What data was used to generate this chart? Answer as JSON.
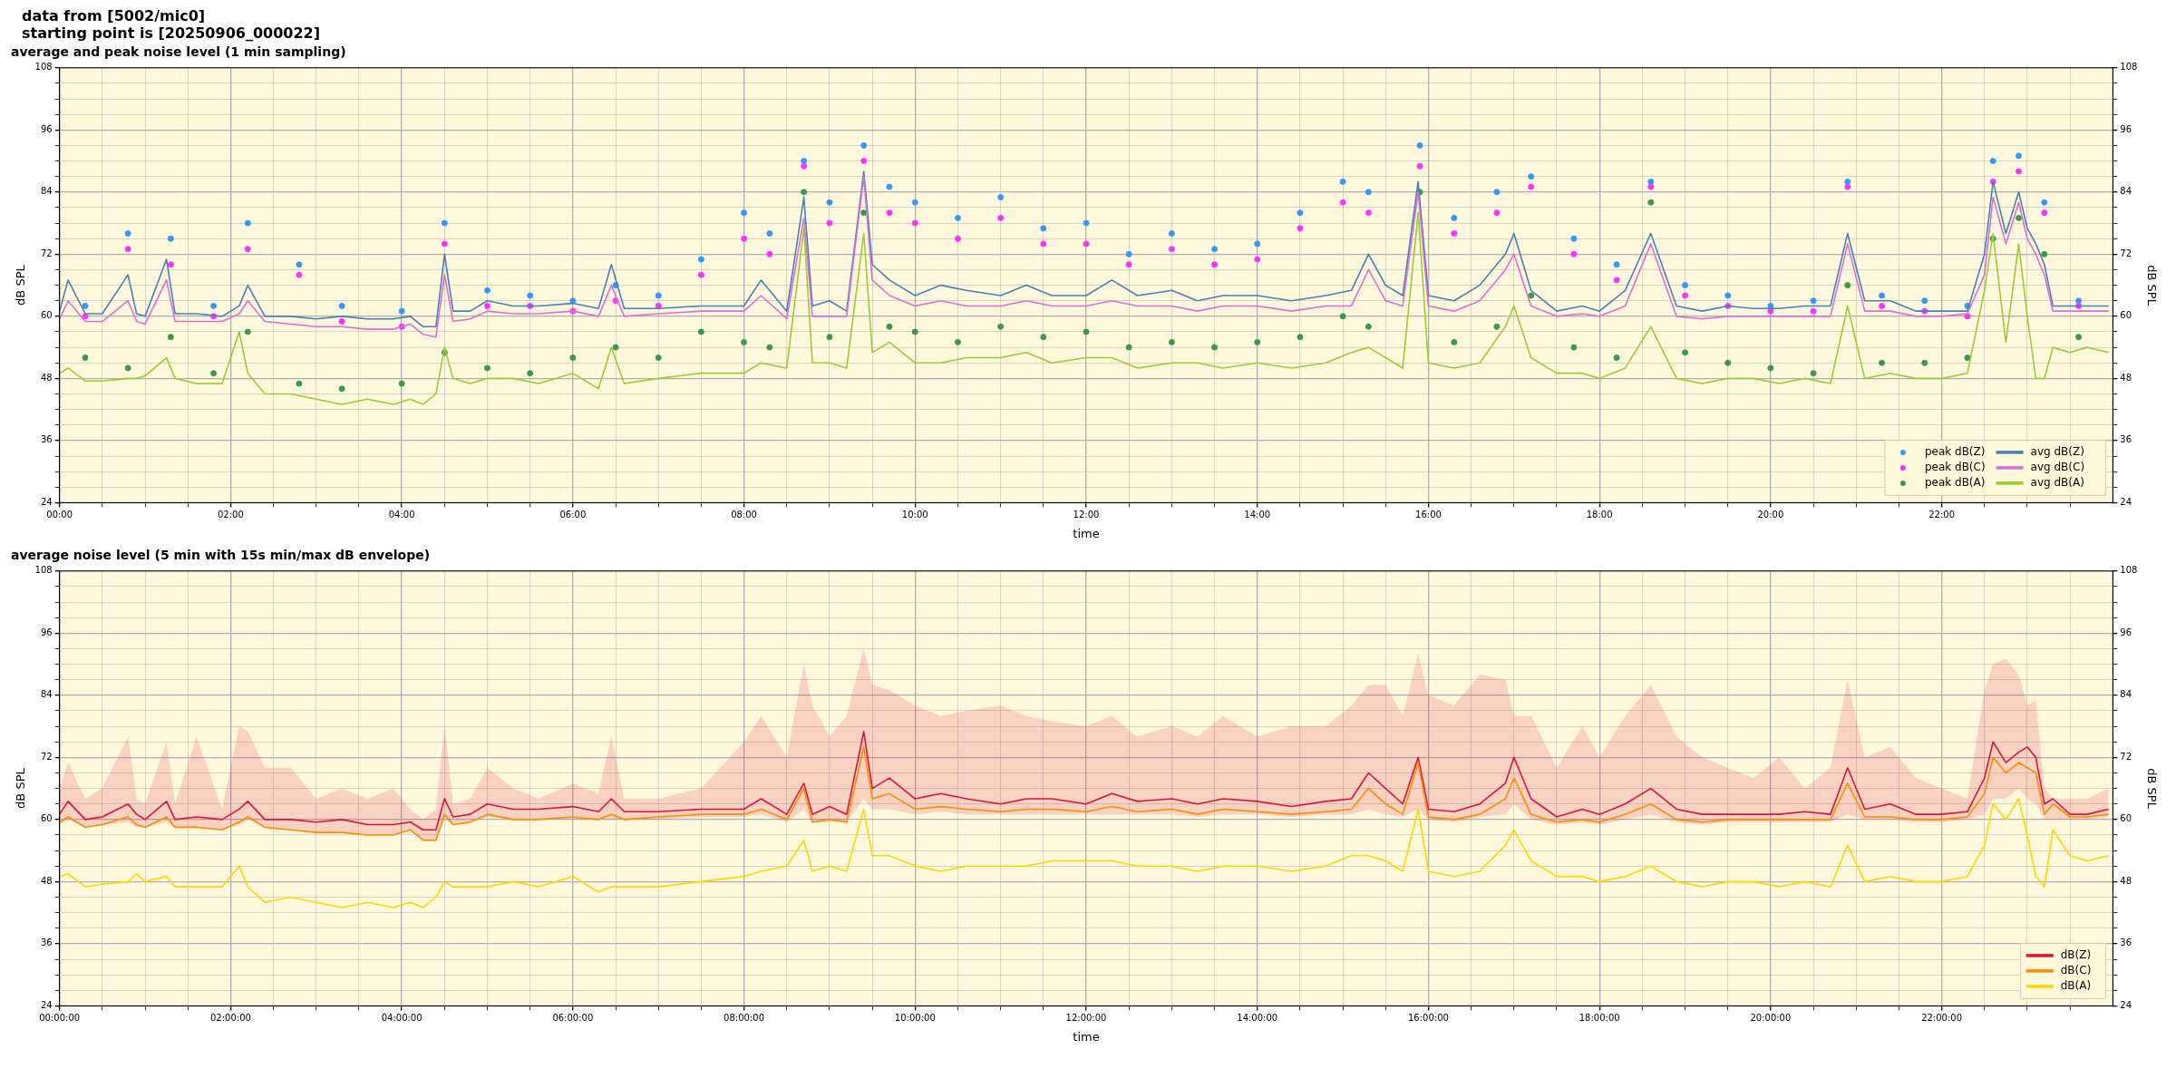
{
  "chart_data": [
    {
      "type": "line",
      "title": "average and peak noise level (1 min sampling)",
      "annotations": [
        "data from [5002/mic0]",
        "starting point is [20250906_000022]"
      ],
      "xlabel": "time",
      "ylabel": "dB SPL",
      "y2label": "dB SPL",
      "legend": "bottom right",
      "grid": true,
      "xlim": [
        0,
        24
      ],
      "ylim": [
        24,
        108
      ],
      "y2lim": [
        24,
        108
      ],
      "xticks": [
        {
          "value": 0,
          "label": "00:00"
        },
        {
          "value": 0.5,
          "label": null
        },
        {
          "value": 1,
          "label": null
        },
        {
          "value": 1.5,
          "label": null
        },
        {
          "value": 2,
          "label": "02:00"
        },
        {
          "value": 2.5,
          "label": null
        },
        {
          "value": 3,
          "label": null
        },
        {
          "value": 3.5,
          "label": null
        },
        {
          "value": 4,
          "label": "04:00"
        },
        {
          "value": 4.5,
          "label": null
        },
        {
          "value": 5,
          "label": null
        },
        {
          "value": 5.5,
          "label": null
        },
        {
          "value": 6,
          "label": "06:00"
        },
        {
          "value": 6.5,
          "label": null
        },
        {
          "value": 7,
          "label": null
        },
        {
          "value": 7.5,
          "label": null
        },
        {
          "value": 8,
          "label": "08:00"
        },
        {
          "value": 8.5,
          "label": null
        },
        {
          "value": 9,
          "label": null
        },
        {
          "value": 9.5,
          "label": null
        },
        {
          "value": 10,
          "label": "10:00"
        },
        {
          "value": 10.5,
          "label": null
        },
        {
          "value": 11,
          "label": null
        },
        {
          "value": 11.5,
          "label": null
        },
        {
          "value": 12,
          "label": "12:00"
        },
        {
          "value": 12.5,
          "label": null
        },
        {
          "value": 13,
          "label": null
        },
        {
          "value": 13.5,
          "label": null
        },
        {
          "value": 14,
          "label": "14:00"
        },
        {
          "value": 14.5,
          "label": null
        },
        {
          "value": 15,
          "label": null
        },
        {
          "value": 15.5,
          "label": null
        },
        {
          "value": 16,
          "label": "16:00"
        },
        {
          "value": 16.5,
          "label": null
        },
        {
          "value": 17,
          "label": null
        },
        {
          "value": 17.5,
          "label": null
        },
        {
          "value": 18,
          "label": "18:00"
        },
        {
          "value": 18.5,
          "label": null
        },
        {
          "value": 19,
          "label": null
        },
        {
          "value": 19.5,
          "label": null
        },
        {
          "value": 20,
          "label": "20:00"
        },
        {
          "value": 20.5,
          "label": null
        },
        {
          "value": 21,
          "label": null
        },
        {
          "value": 21.5,
          "label": null
        },
        {
          "value": 22,
          "label": "22:00"
        },
        {
          "value": 22.5,
          "label": null
        },
        {
          "value": 23,
          "label": null
        },
        {
          "value": 23.5,
          "label": null
        }
      ],
      "yticks": [
        24,
        {
          "value": 27,
          "label": null
        },
        {
          "value": 30,
          "label": null
        },
        {
          "value": 33,
          "label": null
        },
        36,
        {
          "value": 39,
          "label": null
        },
        {
          "value": 42,
          "label": null
        },
        {
          "value": 45,
          "label": null
        },
        48,
        {
          "value": 51,
          "label": null
        },
        {
          "value": 54,
          "label": null
        },
        {
          "value": 57,
          "label": null
        },
        60,
        {
          "value": 63,
          "label": null
        },
        {
          "value": 66,
          "label": null
        },
        {
          "value": 69,
          "label": null
        },
        72,
        {
          "value": 75,
          "label": null
        },
        {
          "value": 78,
          "label": null
        },
        {
          "value": 81,
          "label": null
        },
        84,
        {
          "value": 87,
          "label": null
        },
        {
          "value": 90,
          "label": null
        },
        {
          "value": 93,
          "label": null
        },
        96,
        {
          "value": 99,
          "label": null
        },
        {
          "value": 102,
          "label": null
        },
        {
          "value": 105,
          "label": null
        },
        108
      ],
      "y2ticks": [
        24,
        {
          "value": 27,
          "label": null
        },
        {
          "value": 30,
          "label": null
        },
        {
          "value": 33,
          "label": null
        },
        36,
        {
          "value": 39,
          "label": null
        },
        {
          "value": 42,
          "label": null
        },
        {
          "value": 45,
          "label": null
        },
        48,
        {
          "value": 51,
          "label": null
        },
        {
          "value": 54,
          "label": null
        },
        {
          "value": 57,
          "label": null
        },
        60,
        {
          "value": 63,
          "label": null
        },
        {
          "value": 66,
          "label": null
        },
        {
          "value": 69,
          "label": null
        },
        72,
        {
          "value": 75,
          "label": null
        },
        {
          "value": 78,
          "label": null
        },
        {
          "value": 81,
          "label": null
        },
        84,
        {
          "value": 87,
          "label": null
        },
        {
          "value": 90,
          "label": null
        },
        {
          "value": 93,
          "label": null
        },
        96,
        {
          "value": 99,
          "label": null
        },
        {
          "value": 102,
          "label": null
        },
        {
          "value": 105,
          "label": null
        },
        108
      ],
      "x": [
        0,
        0.1,
        0.3,
        0.5,
        0.8,
        0.9,
        1.0,
        1.25,
        1.35,
        1.6,
        1.9,
        2.1,
        2.2,
        2.4,
        2.7,
        3.0,
        3.3,
        3.6,
        3.9,
        4.1,
        4.25,
        4.4,
        4.5,
        4.6,
        4.8,
        5.0,
        5.3,
        5.6,
        6.0,
        6.3,
        6.45,
        6.6,
        7.0,
        7.5,
        8.0,
        8.2,
        8.5,
        8.7,
        8.8,
        9.0,
        9.2,
        9.4,
        9.5,
        9.7,
        10.0,
        10.3,
        10.6,
        11.0,
        11.3,
        11.6,
        12.0,
        12.3,
        12.6,
        13.0,
        13.3,
        13.6,
        14.0,
        14.4,
        14.8,
        15.1,
        15.3,
        15.5,
        15.7,
        15.88,
        16.0,
        16.3,
        16.6,
        16.9,
        17.0,
        17.2,
        17.5,
        17.8,
        18.0,
        18.3,
        18.6,
        18.9,
        19.2,
        19.5,
        19.8,
        20.1,
        20.4,
        20.7,
        20.9,
        21.1,
        21.4,
        21.7,
        22.0,
        22.3,
        22.5,
        22.6,
        22.75,
        22.9,
        23.0,
        23.1,
        23.2,
        23.3,
        23.5,
        23.7,
        23.95
      ],
      "series": [
        {
          "name": "peak dB(Z)",
          "type": "scatter",
          "marker": "circle",
          "color": "#3399ff",
          "x": [
            0.3,
            0.8,
            1.3,
            1.8,
            2.2,
            2.8,
            3.3,
            4.0,
            4.5,
            5.0,
            5.5,
            6.0,
            6.5,
            7.0,
            7.5,
            8.0,
            8.3,
            8.7,
            9.0,
            9.4,
            9.7,
            10.0,
            10.5,
            11.0,
            11.5,
            12.0,
            12.5,
            13.0,
            13.5,
            14.0,
            14.5,
            15.0,
            15.3,
            15.9,
            16.3,
            16.8,
            17.2,
            17.7,
            18.2,
            18.6,
            19.0,
            19.5,
            20.0,
            20.5,
            20.9,
            21.3,
            21.8,
            22.3,
            22.6,
            22.9,
            23.2,
            23.6
          ],
          "values": [
            62,
            76,
            75,
            62,
            78,
            70,
            62,
            61,
            78,
            65,
            64,
            63,
            66,
            64,
            71,
            80,
            76,
            90,
            82,
            93,
            85,
            82,
            79,
            83,
            77,
            78,
            72,
            76,
            73,
            74,
            80,
            86,
            84,
            93,
            79,
            84,
            87,
            75,
            70,
            86,
            66,
            64,
            62,
            63,
            86,
            64,
            63,
            62,
            90,
            91,
            82,
            63
          ]
        },
        {
          "name": "peak dB(C)",
          "type": "scatter",
          "marker": "circle",
          "color": "#ff33ff",
          "x": [
            0.3,
            0.8,
            1.3,
            1.8,
            2.2,
            2.8,
            3.3,
            4.0,
            4.5,
            5.0,
            5.5,
            6.0,
            6.5,
            7.0,
            7.5,
            8.0,
            8.3,
            8.7,
            9.0,
            9.4,
            9.7,
            10.0,
            10.5,
            11.0,
            11.5,
            12.0,
            12.5,
            13.0,
            13.5,
            14.0,
            14.5,
            15.0,
            15.3,
            15.9,
            16.3,
            16.8,
            17.2,
            17.7,
            18.2,
            18.6,
            19.0,
            19.5,
            20.0,
            20.5,
            20.9,
            21.3,
            21.8,
            22.3,
            22.6,
            22.9,
            23.2,
            23.6
          ],
          "values": [
            60,
            73,
            70,
            60,
            73,
            68,
            59,
            58,
            74,
            62,
            62,
            61,
            63,
            62,
            68,
            75,
            72,
            89,
            78,
            90,
            80,
            78,
            75,
            79,
            74,
            74,
            70,
            73,
            70,
            71,
            77,
            82,
            80,
            89,
            76,
            80,
            85,
            72,
            67,
            85,
            64,
            62,
            61,
            61,
            85,
            62,
            61,
            60,
            86,
            88,
            80,
            62
          ]
        },
        {
          "name": "peak dB(A)",
          "type": "scatter",
          "marker": "circle",
          "color": "#3a9a4a",
          "x": [
            0.3,
            0.8,
            1.3,
            1.8,
            2.2,
            2.8,
            3.3,
            4.0,
            4.5,
            5.0,
            5.5,
            6.0,
            6.5,
            7.0,
            7.5,
            8.0,
            8.3,
            8.7,
            9.0,
            9.4,
            9.7,
            10.0,
            10.5,
            11.0,
            11.5,
            12.0,
            12.5,
            13.0,
            13.5,
            14.0,
            14.5,
            15.0,
            15.3,
            15.9,
            16.3,
            16.8,
            17.2,
            17.7,
            18.2,
            18.6,
            19.0,
            19.5,
            20.0,
            20.5,
            20.9,
            21.3,
            21.8,
            22.3,
            22.6,
            22.9,
            23.2,
            23.6
          ],
          "values": [
            52,
            50,
            56,
            49,
            57,
            47,
            46,
            47,
            53,
            50,
            49,
            52,
            54,
            52,
            57,
            55,
            54,
            84,
            56,
            80,
            58,
            57,
            55,
            58,
            56,
            57,
            54,
            55,
            54,
            55,
            56,
            60,
            58,
            84,
            55,
            58,
            64,
            54,
            52,
            82,
            53,
            51,
            50,
            49,
            66,
            51,
            51,
            52,
            75,
            79,
            72,
            56
          ]
        },
        {
          "name": "avg dB(Z)",
          "type": "line",
          "color": "#4682b4",
          "values": [
            61,
            67,
            60.5,
            60.5,
            68,
            60.5,
            60,
            71,
            60.5,
            60.5,
            60,
            62,
            66,
            60,
            60,
            59.5,
            60,
            59.5,
            59.5,
            60,
            58,
            58,
            72,
            61,
            61,
            63,
            62,
            62,
            62.5,
            61.5,
            70,
            61.5,
            61.5,
            62,
            62,
            67,
            61,
            83,
            62,
            63,
            61,
            88,
            70,
            67,
            64,
            66,
            65,
            64,
            66,
            64,
            64,
            67,
            64,
            65,
            63,
            64,
            64,
            63,
            64,
            65,
            72,
            66,
            64,
            86,
            64,
            63,
            66,
            72,
            76,
            65,
            61,
            62,
            61,
            65,
            76,
            62,
            61,
            62,
            61.5,
            61.5,
            62,
            62,
            76,
            63,
            63,
            61,
            61,
            61,
            72,
            86,
            76,
            84,
            77,
            74,
            70,
            62,
            62,
            62,
            62
          ]
        },
        {
          "name": "avg dB(C)",
          "type": "line",
          "color": "#da70d6",
          "values": [
            59.5,
            63,
            59,
            59,
            63,
            59,
            58.5,
            67,
            59,
            59,
            59,
            60.5,
            63,
            59,
            58.5,
            58,
            58,
            57.5,
            57.5,
            58.5,
            56.5,
            56,
            68,
            59,
            59.5,
            61,
            60.5,
            60.5,
            61,
            60,
            66,
            60,
            60.5,
            61,
            61,
            64,
            59.5,
            79,
            60,
            60,
            60,
            87,
            67,
            64,
            62,
            63,
            62,
            62,
            63,
            62,
            62,
            63,
            62,
            62,
            61,
            62,
            62,
            61,
            62,
            62,
            69,
            63,
            62,
            84,
            62,
            61,
            63,
            69,
            72,
            62,
            60,
            60.5,
            60,
            62,
            74,
            60,
            59.5,
            60,
            60,
            60,
            60,
            60,
            74,
            61,
            61,
            60,
            60,
            60.5,
            68,
            83,
            74,
            82,
            75,
            72,
            68,
            61,
            61,
            61,
            61
          ]
        },
        {
          "name": "avg dB(A)",
          "type": "line",
          "color": "#9acd32",
          "values": [
            49,
            50,
            47.5,
            47.5,
            48,
            48,
            48.5,
            52,
            48,
            47,
            47,
            57,
            49,
            45,
            45,
            44,
            43,
            44,
            43,
            44,
            43,
            45,
            54,
            48,
            47,
            48,
            48,
            47,
            49,
            46,
            54,
            47,
            48,
            49,
            49,
            51,
            50,
            77,
            51,
            51,
            50,
            76,
            53,
            55,
            51,
            51,
            52,
            52,
            53,
            51,
            52,
            52,
            50,
            51,
            51,
            50,
            51,
            50,
            51,
            53,
            54,
            52,
            50,
            80,
            51,
            50,
            51,
            58,
            62,
            52,
            49,
            49,
            48,
            50,
            58,
            48,
            47,
            48,
            48,
            47,
            48,
            47,
            62,
            48,
            49,
            48,
            48,
            49,
            65,
            76,
            55,
            74,
            60,
            48,
            48,
            54,
            53,
            54,
            53
          ]
        }
      ]
    },
    {
      "type": "line",
      "title": "average noise level (5 min with 15s min/max dB envelope)",
      "xlabel": "time",
      "ylabel": "dB SPL",
      "y2label": "dB SPL",
      "legend": "bottom right",
      "grid": true,
      "xlim": [
        0,
        24
      ],
      "ylim": [
        24,
        108
      ],
      "y2lim": [
        24,
        108
      ],
      "xticks": [
        {
          "value": 0,
          "label": "00:00:00"
        },
        {
          "value": 0.5,
          "label": null
        },
        {
          "value": 1,
          "label": null
        },
        {
          "value": 1.5,
          "label": null
        },
        {
          "value": 2,
          "label": "02:00:00"
        },
        {
          "value": 2.5,
          "label": null
        },
        {
          "value": 3,
          "label": null
        },
        {
          "value": 3.5,
          "label": null
        },
        {
          "value": 4,
          "label": "04:00:00"
        },
        {
          "value": 4.5,
          "label": null
        },
        {
          "value": 5,
          "label": null
        },
        {
          "value": 5.5,
          "label": null
        },
        {
          "value": 6,
          "label": "06:00:00"
        },
        {
          "value": 6.5,
          "label": null
        },
        {
          "value": 7,
          "label": null
        },
        {
          "value": 7.5,
          "label": null
        },
        {
          "value": 8,
          "label": "08:00:00"
        },
        {
          "value": 8.5,
          "label": null
        },
        {
          "value": 9,
          "label": null
        },
        {
          "value": 9.5,
          "label": null
        },
        {
          "value": 10,
          "label": "10:00:00"
        },
        {
          "value": 10.5,
          "label": null
        },
        {
          "value": 11,
          "label": null
        },
        {
          "value": 11.5,
          "label": null
        },
        {
          "value": 12,
          "label": "12:00:00"
        },
        {
          "value": 12.5,
          "label": null
        },
        {
          "value": 13,
          "label": null
        },
        {
          "value": 13.5,
          "label": null
        },
        {
          "value": 14,
          "label": "14:00:00"
        },
        {
          "value": 14.5,
          "label": null
        },
        {
          "value": 15,
          "label": null
        },
        {
          "value": 15.5,
          "label": null
        },
        {
          "value": 16,
          "label": "16:00:00"
        },
        {
          "value": 16.5,
          "label": null
        },
        {
          "value": 17,
          "label": null
        },
        {
          "value": 17.5,
          "label": null
        },
        {
          "value": 18,
          "label": "18:00:00"
        },
        {
          "value": 18.5,
          "label": null
        },
        {
          "value": 19,
          "label": null
        },
        {
          "value": 19.5,
          "label": null
        },
        {
          "value": 20,
          "label": "20:00:00"
        },
        {
          "value": 20.5,
          "label": null
        },
        {
          "value": 21,
          "label": null
        },
        {
          "value": 21.5,
          "label": null
        },
        {
          "value": 22,
          "label": "22:00:00"
        },
        {
          "value": 22.5,
          "label": null
        },
        {
          "value": 23,
          "label": null
        },
        {
          "value": 23.5,
          "label": null
        }
      ],
      "yticks": [
        24,
        {
          "value": 27,
          "label": null
        },
        {
          "value": 30,
          "label": null
        },
        {
          "value": 33,
          "label": null
        },
        36,
        {
          "value": 39,
          "label": null
        },
        {
          "value": 42,
          "label": null
        },
        {
          "value": 45,
          "label": null
        },
        48,
        {
          "value": 51,
          "label": null
        },
        {
          "value": 54,
          "label": null
        },
        {
          "value": 57,
          "label": null
        },
        60,
        {
          "value": 63,
          "label": null
        },
        {
          "value": 66,
          "label": null
        },
        {
          "value": 69,
          "label": null
        },
        72,
        {
          "value": 75,
          "label": null
        },
        {
          "value": 78,
          "label": null
        },
        {
          "value": 81,
          "label": null
        },
        84,
        {
          "value": 87,
          "label": null
        },
        {
          "value": 90,
          "label": null
        },
        {
          "value": 93,
          "label": null
        },
        96,
        {
          "value": 99,
          "label": null
        },
        {
          "value": 102,
          "label": null
        },
        {
          "value": 105,
          "label": null
        },
        108
      ],
      "y2ticks": [
        24,
        {
          "value": 27,
          "label": null
        },
        {
          "value": 30,
          "label": null
        },
        {
          "value": 33,
          "label": null
        },
        36,
        {
          "value": 39,
          "label": null
        },
        {
          "value": 42,
          "label": null
        },
        {
          "value": 45,
          "label": null
        },
        48,
        {
          "value": 51,
          "label": null
        },
        {
          "value": 54,
          "label": null
        },
        {
          "value": 57,
          "label": null
        },
        60,
        {
          "value": 63,
          "label": null
        },
        {
          "value": 66,
          "label": null
        },
        {
          "value": 69,
          "label": null
        },
        72,
        {
          "value": 75,
          "label": null
        },
        {
          "value": 78,
          "label": null
        },
        {
          "value": 81,
          "label": null
        },
        84,
        {
          "value": 87,
          "label": null
        },
        {
          "value": 90,
          "label": null
        },
        {
          "value": 93,
          "label": null
        },
        96,
        {
          "value": 99,
          "label": null
        },
        {
          "value": 102,
          "label": null
        },
        {
          "value": 105,
          "label": null
        },
        108
      ],
      "x": [
        0,
        0.1,
        0.3,
        0.5,
        0.8,
        0.9,
        1.0,
        1.25,
        1.35,
        1.6,
        1.9,
        2.1,
        2.2,
        2.4,
        2.7,
        3.0,
        3.3,
        3.6,
        3.9,
        4.1,
        4.25,
        4.4,
        4.5,
        4.6,
        4.8,
        5.0,
        5.3,
        5.6,
        6.0,
        6.3,
        6.45,
        6.6,
        7.0,
        7.5,
        8.0,
        8.2,
        8.5,
        8.7,
        8.8,
        9.0,
        9.2,
        9.4,
        9.5,
        9.7,
        10.0,
        10.3,
        10.6,
        11.0,
        11.3,
        11.6,
        12.0,
        12.3,
        12.6,
        13.0,
        13.3,
        13.6,
        14.0,
        14.4,
        14.8,
        15.1,
        15.3,
        15.5,
        15.7,
        15.88,
        16.0,
        16.3,
        16.6,
        16.9,
        17.0,
        17.2,
        17.5,
        17.8,
        18.0,
        18.3,
        18.6,
        18.9,
        19.2,
        19.5,
        19.8,
        20.1,
        20.4,
        20.7,
        20.9,
        21.1,
        21.4,
        21.7,
        22.0,
        22.3,
        22.5,
        22.6,
        22.75,
        22.9,
        23.0,
        23.1,
        23.2,
        23.3,
        23.5,
        23.7,
        23.95
      ],
      "series": [
        {
          "name": "dB(Z)",
          "type": "line",
          "color": "#dc143c",
          "values": [
            61,
            63.5,
            60,
            60.5,
            63,
            61,
            60,
            63.5,
            60,
            60.5,
            60,
            62,
            63.5,
            60,
            60,
            59.5,
            60,
            59,
            59,
            59.5,
            58,
            58,
            64,
            60.5,
            61,
            63,
            62,
            62,
            62.5,
            61.5,
            64,
            61.5,
            61.5,
            62,
            62,
            64,
            61,
            67,
            61,
            62.5,
            61,
            77,
            66,
            68,
            64,
            65,
            64,
            63,
            64,
            64,
            63,
            65,
            63.5,
            64,
            63,
            64,
            63.5,
            62.5,
            63.5,
            64,
            69,
            66,
            63,
            72,
            62,
            61.5,
            63,
            67,
            72,
            64,
            60.5,
            62,
            61,
            63,
            66,
            62,
            61,
            61,
            61,
            61,
            61.5,
            61,
            70,
            62,
            63,
            61,
            61,
            61.5,
            68,
            75,
            71,
            73,
            74,
            72,
            63,
            64,
            61,
            61,
            62
          ],
          "lower": [
            59,
            60,
            58.5,
            59,
            59.5,
            58.5,
            58.5,
            59.5,
            58.5,
            58.5,
            58,
            59,
            60,
            58.5,
            58,
            57.5,
            57.5,
            57,
            57,
            58,
            56,
            56,
            60,
            59,
            59.5,
            60.5,
            60,
            60,
            60,
            60,
            60,
            60,
            60,
            60.5,
            60.5,
            61,
            59.5,
            62,
            59.5,
            59.5,
            59.5,
            64,
            62,
            62,
            61,
            61.5,
            61,
            61,
            61,
            61,
            61,
            61,
            61,
            61,
            60.5,
            61,
            61,
            60.5,
            61,
            61,
            62,
            61,
            60.5,
            62,
            60,
            59.5,
            60.5,
            61,
            63,
            60,
            59,
            59.5,
            59,
            60,
            61,
            59.5,
            59,
            59.5,
            59.5,
            59.5,
            59.5,
            59.5,
            61,
            60,
            60,
            59.5,
            59.5,
            60,
            61,
            64,
            64,
            66,
            64,
            63,
            60,
            60,
            60,
            60,
            60.5
          ],
          "upper": [
            66,
            71,
            64,
            66,
            76,
            64,
            63,
            75,
            63,
            76,
            62,
            78,
            77,
            70,
            70,
            64,
            66,
            64,
            66,
            62,
            60,
            62,
            78,
            63,
            64,
            70,
            66,
            64,
            67,
            65,
            76,
            64,
            64,
            66,
            75,
            80,
            72,
            90,
            82,
            76,
            80,
            93,
            86,
            85,
            82,
            80,
            81,
            82,
            80,
            79,
            78,
            80,
            76,
            78,
            76,
            80,
            76,
            78,
            78,
            82,
            86,
            86,
            80,
            92,
            84,
            82,
            88,
            87,
            80,
            80,
            70,
            78,
            72,
            80,
            86,
            76,
            72,
            70,
            68,
            72,
            66,
            70,
            87,
            72,
            74,
            68,
            66,
            64,
            85,
            90,
            91,
            88,
            82,
            83,
            66,
            64,
            64,
            64,
            66
          ]
        },
        {
          "name": "dB(C)",
          "type": "line",
          "color": "#ff8c00",
          "values": [
            59.5,
            60.5,
            58.5,
            59,
            60.5,
            59,
            58.5,
            60.5,
            58.5,
            58.5,
            58,
            59.5,
            60.5,
            58.5,
            58,
            57.5,
            57.5,
            57,
            57,
            58,
            56,
            56,
            61,
            59,
            59.5,
            61,
            60,
            60,
            60.5,
            60,
            61,
            60,
            60.5,
            61,
            61,
            62,
            60,
            66,
            59.5,
            60,
            59.5,
            74,
            64,
            65,
            62,
            62.5,
            62,
            61.5,
            62,
            62,
            61.5,
            62.5,
            61.5,
            62,
            61,
            62,
            61.5,
            61,
            61.5,
            62,
            66,
            63,
            61,
            71,
            60.5,
            60,
            61,
            64,
            68,
            61,
            59.5,
            60,
            59.5,
            61,
            63,
            60,
            59.5,
            60,
            60,
            60,
            60,
            60,
            67,
            60.5,
            60.5,
            60,
            60,
            60.5,
            65,
            72,
            69,
            71,
            70,
            69,
            61,
            63,
            60.5,
            60.5,
            61
          ]
        },
        {
          "name": "dB(A)",
          "type": "line",
          "color": "#ffd700",
          "values": [
            49,
            49.5,
            47,
            47.5,
            48,
            49.5,
            48,
            49,
            47,
            47,
            47,
            51,
            47,
            44,
            45,
            44,
            43,
            44,
            43,
            44,
            43,
            45,
            48,
            47,
            47,
            47,
            48,
            47,
            49,
            46,
            47,
            47,
            47,
            48,
            49,
            50,
            51,
            56,
            50,
            51,
            50,
            62,
            53,
            53,
            51,
            50,
            51,
            51,
            51,
            52,
            52,
            52,
            51,
            51,
            50,
            51,
            51,
            50,
            51,
            53,
            53,
            52,
            50,
            62,
            50,
            49,
            50,
            55,
            58,
            52,
            49,
            49,
            48,
            49,
            51,
            48,
            47,
            48,
            48,
            47,
            48,
            47,
            55,
            48,
            49,
            48,
            48,
            49,
            55,
            63,
            60,
            64,
            57,
            49,
            47,
            58,
            53,
            52,
            53
          ]
        }
      ]
    }
  ]
}
